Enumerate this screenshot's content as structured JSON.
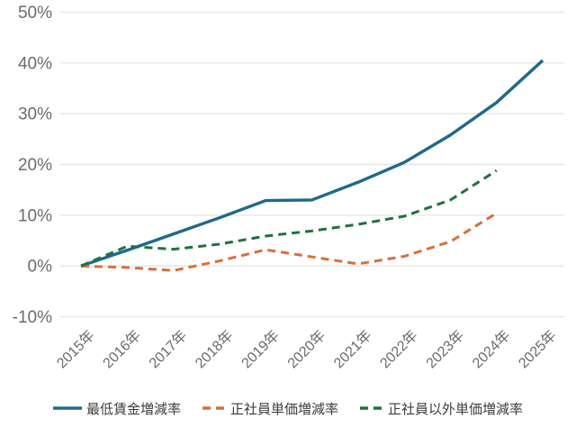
{
  "chart_data": {
    "type": "line",
    "title": "",
    "xlabel": "",
    "ylabel": "",
    "x_labels": [
      "2015年",
      "2016年",
      "2017年",
      "2018年",
      "2019年",
      "2020年",
      "2021年",
      "2022年",
      "2023年",
      "2024年",
      "2025年"
    ],
    "y_tick_labels": [
      "50%",
      "40%",
      "30%",
      "20%",
      "10%",
      "0%",
      "-10%"
    ],
    "y_tick_values": [
      50,
      40,
      30,
      20,
      10,
      0,
      -10
    ],
    "ylim": [
      -10,
      50
    ],
    "grid": "horizontal-only",
    "legend_position": "bottom-center",
    "series": [
      {
        "name": "最低賃金増減率",
        "color": "#20698c",
        "dash": "solid",
        "values": [
          0,
          3.1,
          6.3,
          9.5,
          12.9,
          13.0,
          16.5,
          20.4,
          25.8,
          32.2,
          40.5
        ]
      },
      {
        "name": "正社員単価増減率",
        "color": "#dc6e38",
        "dash": "dashed",
        "values": [
          0,
          -0.3,
          -0.9,
          1.0,
          3.2,
          1.8,
          0.4,
          1.9,
          4.8,
          10.4
        ]
      },
      {
        "name": "正社員以外単価増減率",
        "color": "#1d7340",
        "dash": "dashed",
        "values": [
          0,
          3.9,
          3.3,
          4.3,
          5.9,
          6.9,
          8.2,
          9.8,
          13.0,
          18.8
        ]
      }
    ]
  },
  "colors": {
    "background": "#ffffff",
    "grid": "#e5e5e5",
    "axis_text": "#6b6b6b",
    "legend_text": "#3d3d3d"
  }
}
